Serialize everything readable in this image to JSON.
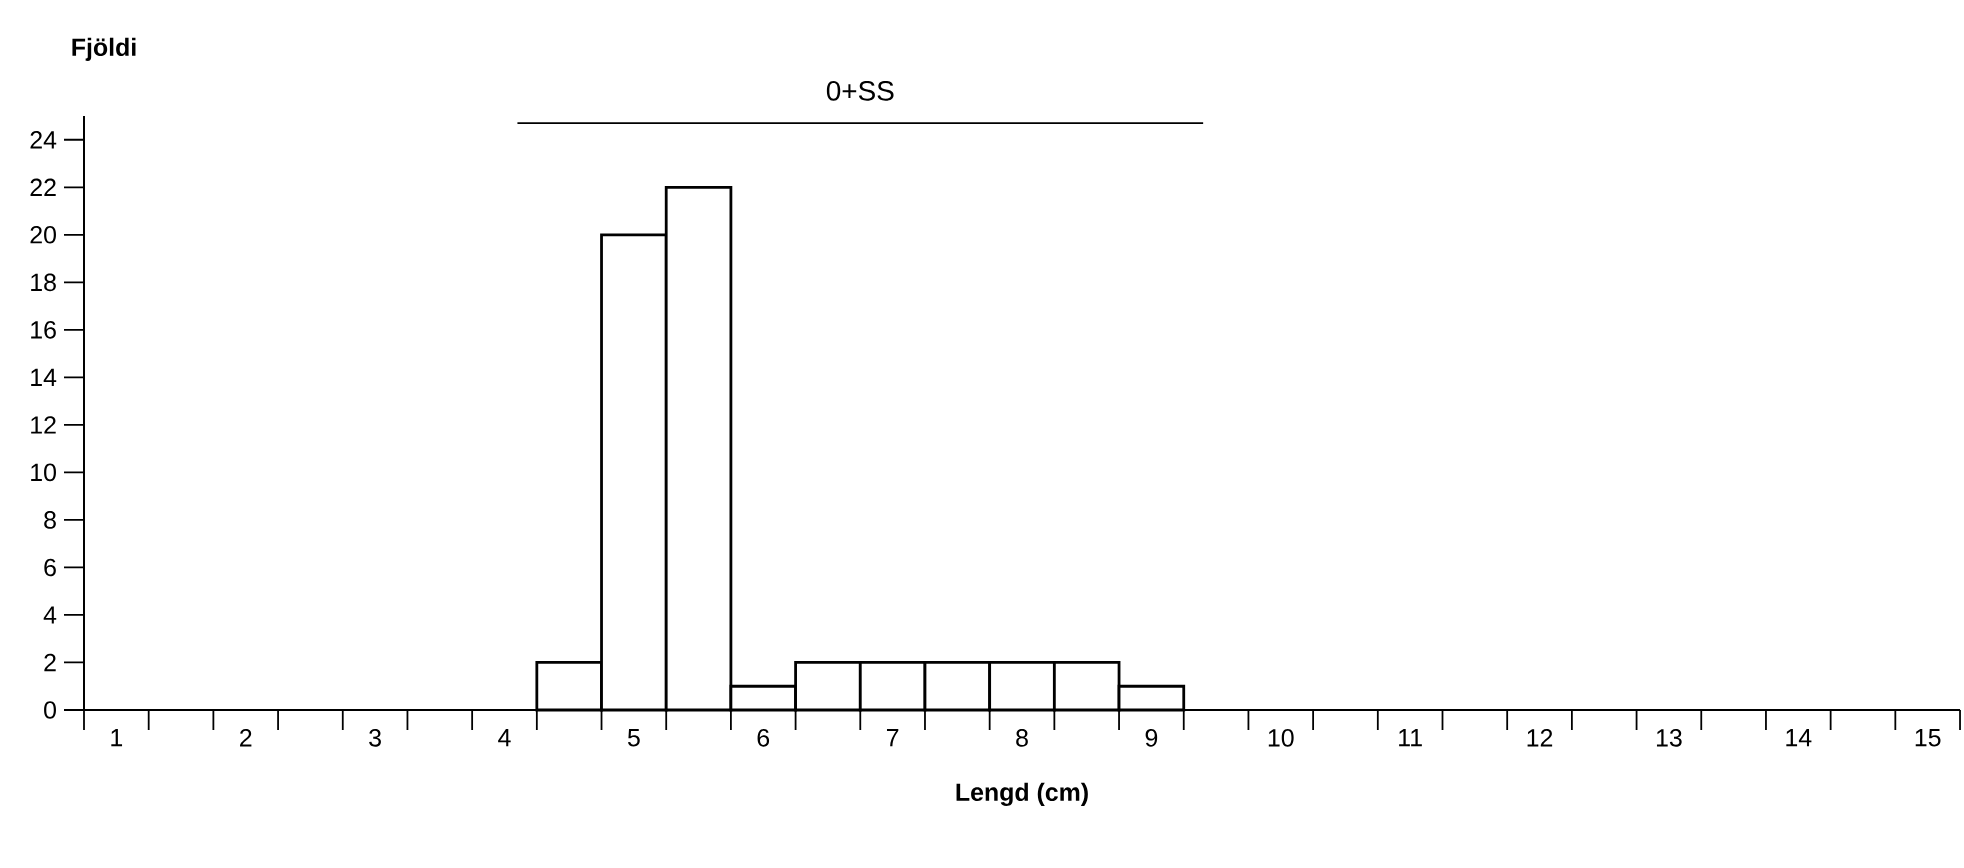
{
  "chart_data": {
    "type": "histogram",
    "xlabel": "Lengd (cm)",
    "ylabel": "Fjöldi",
    "bins": [
      4.25,
      4.75,
      5.25,
      5.75,
      6.25,
      6.75,
      7.25,
      7.75,
      8.25,
      8.75,
      9.25
    ],
    "values": [
      2,
      20,
      22,
      1,
      2,
      2,
      2,
      2,
      2,
      1
    ],
    "color": "#ffffff",
    "xlim": [
      0.75,
      15.25
    ],
    "ylim": [
      0,
      25
    ],
    "xticks": [
      1,
      2,
      3,
      4,
      5,
      6,
      7,
      8,
      9,
      10,
      11,
      12,
      13,
      14,
      15,
      {
        "value": 0.75,
        "label": null
      },
      {
        "value": 1.25,
        "label": null
      },
      {
        "value": 1.75,
        "label": null
      },
      {
        "value": 2.25,
        "label": null
      },
      {
        "value": 2.75,
        "label": null
      },
      {
        "value": 3.25,
        "label": null
      },
      {
        "value": 3.75,
        "label": null
      },
      {
        "value": 4.25,
        "label": null
      },
      {
        "value": 4.75,
        "label": null
      },
      {
        "value": 5.25,
        "label": null
      },
      {
        "value": 5.75,
        "label": null
      },
      {
        "value": 6.25,
        "label": null
      },
      {
        "value": 6.75,
        "label": null
      },
      {
        "value": 7.25,
        "label": null
      },
      {
        "value": 7.75,
        "label": null
      },
      {
        "value": 8.25,
        "label": null
      },
      {
        "value": 8.75,
        "label": null
      },
      {
        "value": 9.25,
        "label": null
      },
      {
        "value": 9.75,
        "label": null
      },
      {
        "value": 10.25,
        "label": null
      },
      {
        "value": 10.75,
        "label": null
      },
      {
        "value": 11.25,
        "label": null
      },
      {
        "value": 11.75,
        "label": null
      },
      {
        "value": 12.25,
        "label": null
      },
      {
        "value": 12.75,
        "label": null
      },
      {
        "value": 13.25,
        "label": null
      },
      {
        "value": 13.75,
        "label": null
      },
      {
        "value": 14.25,
        "label": null
      },
      {
        "value": 14.75,
        "label": null
      },
      {
        "value": 15.25,
        "label": null
      }
    ],
    "yticks": [
      0,
      2,
      4,
      6,
      8,
      10,
      12,
      14,
      16,
      18,
      20,
      22,
      24
    ],
    "series": [
      {
        "type": "line",
        "x": [
          4.1,
          9.4
        ],
        "values": [
          24.7,
          24.7
        ],
        "color": "#000000"
      }
    ],
    "annotations": [
      "0+SS"
    ]
  }
}
